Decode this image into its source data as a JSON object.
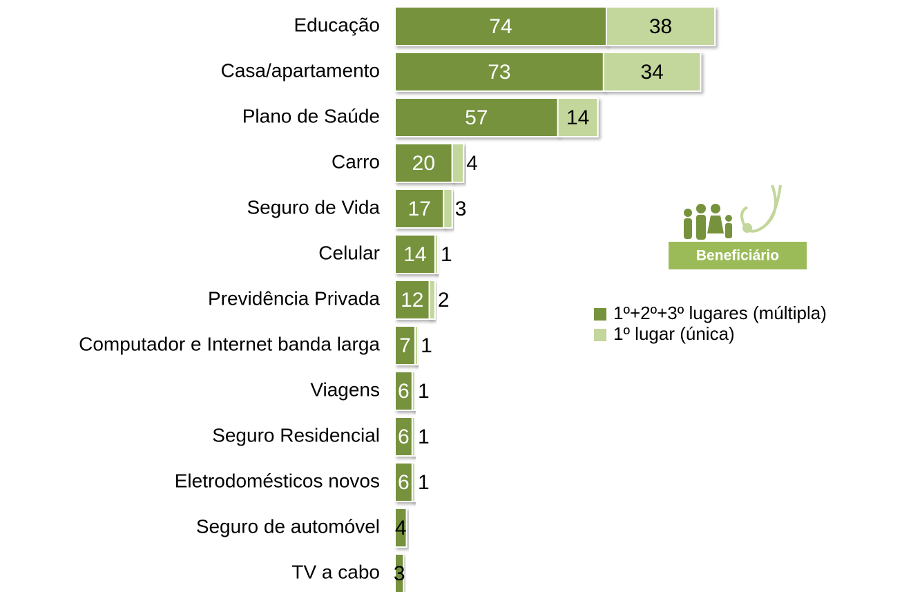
{
  "chart_data": {
    "type": "bar",
    "orientation": "horizontal",
    "stacked": true,
    "categories": [
      "Educação",
      "Casa/apartamento",
      "Plano de Saúde",
      "Carro",
      "Seguro de Vida",
      "Celular",
      "Previdência Privada",
      "Computador e Internet banda larga",
      "Viagens",
      "Seguro Residencial",
      "Eletrodomésticos novos",
      "Seguro de automóvel",
      "TV a cabo"
    ],
    "series": [
      {
        "name": "1º+2º+3º lugares (múltipla)",
        "color": "#76923c",
        "values": [
          74,
          73,
          57,
          20,
          17,
          14,
          12,
          7,
          6,
          6,
          6,
          4,
          3
        ]
      },
      {
        "name": "1º lugar  (única)",
        "color": "#c3d69b",
        "values": [
          38,
          34,
          14,
          4,
          3,
          1,
          2,
          1,
          1,
          1,
          1,
          null,
          null
        ]
      }
    ],
    "legend": "right",
    "annotations": [
      "Beneficiário"
    ]
  }
}
